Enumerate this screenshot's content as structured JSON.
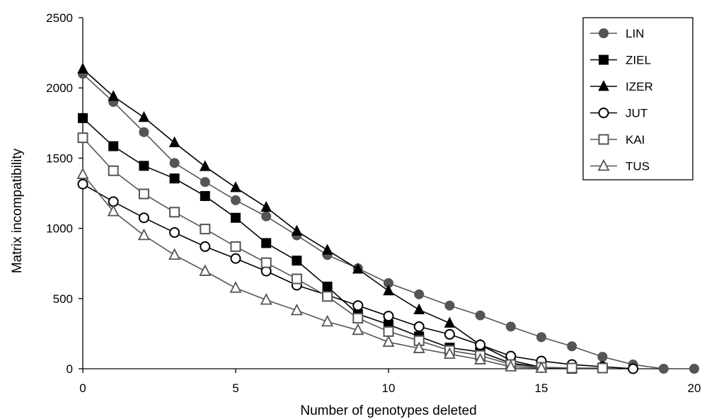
{
  "chart_data": {
    "type": "line",
    "title": "",
    "xlabel": "Number of genotypes deleted",
    "ylabel": "Matrix incompatibility",
    "xlim": [
      0,
      20
    ],
    "ylim": [
      0,
      2500
    ],
    "x_ticks": [
      0,
      5,
      10,
      15,
      20
    ],
    "y_ticks": [
      0,
      500,
      1000,
      1500,
      2000,
      2500
    ],
    "grid": false,
    "legend_position": "top-right",
    "series": [
      {
        "name": "LIN",
        "color": "#555555",
        "marker": "filled-circle",
        "x": [
          0,
          1,
          2,
          3,
          4,
          5,
          6,
          7,
          8,
          9,
          10,
          11,
          12,
          13,
          14,
          15,
          16,
          17,
          18,
          19,
          20
        ],
        "values": [
          2100,
          1900,
          1685,
          1465,
          1330,
          1200,
          1085,
          950,
          810,
          715,
          610,
          530,
          450,
          380,
          300,
          225,
          160,
          85,
          30,
          0,
          0
        ]
      },
      {
        "name": "ZIEL",
        "color": "#000000",
        "marker": "filled-square",
        "x": [
          0,
          1,
          2,
          3,
          4,
          5,
          6,
          7,
          8,
          9,
          10,
          11,
          12,
          13,
          14,
          15,
          16
        ],
        "values": [
          1785,
          1585,
          1445,
          1355,
          1230,
          1075,
          895,
          770,
          585,
          390,
          315,
          230,
          150,
          120,
          40,
          10,
          0
        ]
      },
      {
        "name": "IZER",
        "color": "#000000",
        "marker": "filled-triangle",
        "x": [
          0,
          1,
          2,
          3,
          4,
          5,
          6,
          7,
          8,
          9,
          10,
          11,
          12,
          13,
          14,
          15,
          16
        ],
        "values": [
          2135,
          1940,
          1790,
          1610,
          1440,
          1290,
          1150,
          980,
          845,
          710,
          555,
          420,
          325,
          170,
          60,
          10,
          5
        ]
      },
      {
        "name": "JUT",
        "color": "#000000",
        "marker": "open-circle",
        "x": [
          0,
          1,
          2,
          3,
          4,
          5,
          6,
          7,
          8,
          9,
          10,
          11,
          12,
          13,
          14,
          15,
          16,
          17,
          18
        ],
        "values": [
          1315,
          1190,
          1075,
          970,
          870,
          785,
          695,
          595,
          525,
          450,
          375,
          300,
          245,
          170,
          90,
          55,
          30,
          15,
          0
        ]
      },
      {
        "name": "KAI",
        "color": "#555555",
        "marker": "open-square",
        "x": [
          0,
          1,
          2,
          3,
          4,
          5,
          6,
          7,
          8,
          9,
          10,
          11,
          12,
          13,
          14,
          15,
          16,
          17
        ],
        "values": [
          1645,
          1410,
          1245,
          1115,
          995,
          870,
          755,
          640,
          515,
          360,
          265,
          200,
          130,
          95,
          30,
          10,
          5,
          5
        ]
      },
      {
        "name": "TUS",
        "color": "#555555",
        "marker": "open-triangle",
        "x": [
          0,
          1,
          2,
          3,
          4,
          5,
          6,
          7,
          8,
          9,
          10,
          11,
          12,
          13,
          14,
          15
        ],
        "values": [
          1385,
          1120,
          950,
          810,
          695,
          575,
          490,
          415,
          335,
          275,
          190,
          145,
          105,
          65,
          15,
          5
        ]
      }
    ]
  }
}
